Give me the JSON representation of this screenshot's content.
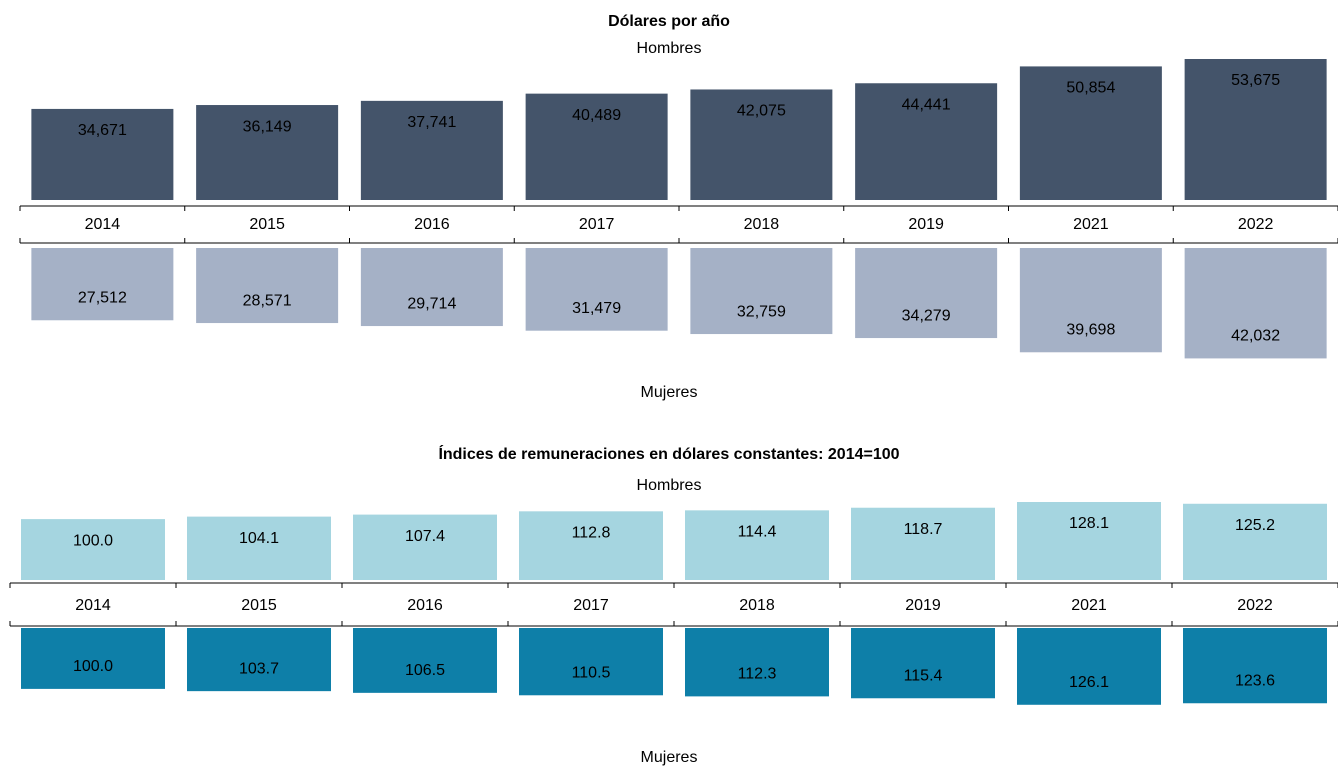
{
  "chart_data": [
    {
      "type": "bar",
      "title": "Dólares por año",
      "categories": [
        "2014",
        "2015",
        "2016",
        "2017",
        "2018",
        "2019",
        "2021",
        "2022"
      ],
      "series": [
        {
          "name": "Hombres",
          "color": "#44546a",
          "values": [
            34671,
            36149,
            37741,
            40489,
            42075,
            44441,
            50854,
            53675
          ],
          "value_labels": [
            "34,671",
            "36,149",
            "37,741",
            "40,489",
            "42,075",
            "44,441",
            "50,854",
            "53,675"
          ]
        },
        {
          "name": "Mujeres",
          "color": "#a5b1c6",
          "values": [
            27512,
            28571,
            29714,
            31479,
            32759,
            34279,
            39698,
            42032
          ],
          "value_labels": [
            "27,512",
            "28,571",
            "29,714",
            "31,479",
            "32,759",
            "34,279",
            "39,698",
            "42,032"
          ]
        }
      ]
    },
    {
      "type": "bar",
      "title": "Índices de remuneraciones en dólares constantes: 2014=100",
      "categories": [
        "2014",
        "2015",
        "2016",
        "2017",
        "2018",
        "2019",
        "2021",
        "2022"
      ],
      "series": [
        {
          "name": "Hombres",
          "color": "#a5d5e0",
          "values": [
            100.0,
            104.1,
            107.4,
            112.8,
            114.4,
            118.7,
            128.1,
            125.2
          ],
          "value_labels": [
            "100.0",
            "104.1",
            "107.4",
            "112.8",
            "114.4",
            "118.7",
            "128.1",
            "125.2"
          ]
        },
        {
          "name": "Mujeres",
          "color": "#0e7fa8",
          "values": [
            100.0,
            103.7,
            106.5,
            110.5,
            112.3,
            115.4,
            126.1,
            123.6
          ],
          "value_labels": [
            "100.0",
            "103.7",
            "106.5",
            "110.5",
            "112.3",
            "115.4",
            "126.1",
            "123.6"
          ]
        }
      ]
    }
  ]
}
